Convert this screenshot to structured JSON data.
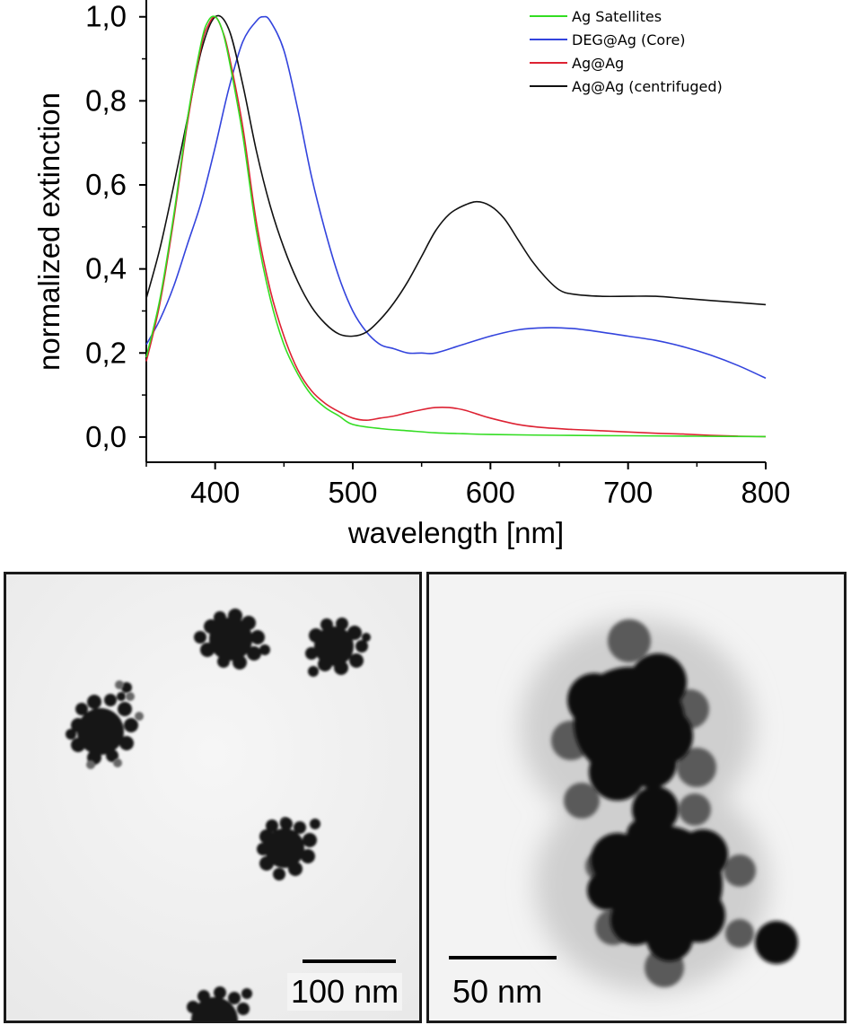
{
  "chart_data": {
    "type": "line",
    "xlabel": "wavelength [nm]",
    "ylabel": "normalized extinction",
    "xlim": [
      350,
      800
    ],
    "ylim": [
      -0.06,
      1.04
    ],
    "xticks": [
      "400",
      "500",
      "600",
      "700",
      "800"
    ],
    "xtick_values": [
      400,
      500,
      600,
      700,
      800
    ],
    "yticks": [
      "0,0",
      "0,2",
      "0,4",
      "0,6",
      "0,8",
      "1,0"
    ],
    "ytick_values": [
      0,
      0.2,
      0.4,
      0.6,
      0.8,
      1.0
    ],
    "legend_position": "top-right",
    "grid": false,
    "series": [
      {
        "name": "Ag Satellites",
        "color": "#33dd22",
        "x": [
          350,
          360,
          370,
          380,
          390,
          395,
          400,
          405,
          410,
          420,
          430,
          440,
          450,
          460,
          470,
          480,
          490,
          500,
          520,
          540,
          560,
          580,
          600,
          650,
          700,
          750,
          800
        ],
        "y": [
          0.19,
          0.33,
          0.53,
          0.76,
          0.94,
          0.99,
          1.0,
          0.97,
          0.9,
          0.72,
          0.49,
          0.33,
          0.22,
          0.15,
          0.1,
          0.07,
          0.05,
          0.03,
          0.02,
          0.015,
          0.01,
          0.008,
          0.006,
          0.004,
          0.003,
          0.002,
          0.001
        ]
      },
      {
        "name": "DEG@Ag (Core)",
        "color": "#3344dd",
        "x": [
          350,
          360,
          370,
          380,
          390,
          400,
          410,
          420,
          430,
          435,
          440,
          450,
          460,
          470,
          480,
          490,
          500,
          510,
          520,
          530,
          540,
          550,
          560,
          580,
          600,
          620,
          640,
          660,
          680,
          700,
          720,
          740,
          760,
          780,
          800
        ],
        "y": [
          0.22,
          0.28,
          0.36,
          0.46,
          0.56,
          0.69,
          0.83,
          0.94,
          0.99,
          1.0,
          0.99,
          0.92,
          0.78,
          0.62,
          0.49,
          0.38,
          0.3,
          0.25,
          0.22,
          0.21,
          0.2,
          0.2,
          0.2,
          0.22,
          0.24,
          0.255,
          0.26,
          0.258,
          0.25,
          0.24,
          0.23,
          0.215,
          0.195,
          0.17,
          0.14
        ]
      },
      {
        "name": "Ag@Ag",
        "color": "#dd2233",
        "x": [
          350,
          360,
          370,
          380,
          390,
          395,
          400,
          405,
          410,
          420,
          430,
          440,
          450,
          460,
          470,
          480,
          490,
          500,
          510,
          520,
          530,
          540,
          550,
          560,
          570,
          580,
          590,
          600,
          620,
          640,
          660,
          680,
          700,
          720,
          740,
          760,
          780,
          800
        ],
        "y": [
          0.18,
          0.32,
          0.52,
          0.75,
          0.93,
          0.98,
          1.0,
          0.97,
          0.91,
          0.74,
          0.51,
          0.35,
          0.24,
          0.16,
          0.11,
          0.08,
          0.06,
          0.045,
          0.04,
          0.045,
          0.05,
          0.058,
          0.065,
          0.07,
          0.07,
          0.065,
          0.055,
          0.045,
          0.03,
          0.022,
          0.018,
          0.015,
          0.012,
          0.009,
          0.007,
          0.004,
          0.002,
          0.001
        ]
      },
      {
        "name": "Ag@Ag (centrifuged)",
        "color": "#111111",
        "x": [
          350,
          360,
          370,
          380,
          390,
          400,
          410,
          420,
          430,
          440,
          450,
          460,
          470,
          480,
          490,
          500,
          510,
          520,
          530,
          540,
          550,
          560,
          570,
          580,
          590,
          600,
          610,
          620,
          630,
          640,
          650,
          660,
          680,
          700,
          720,
          740,
          760,
          780,
          800
        ],
        "y": [
          0.33,
          0.45,
          0.6,
          0.76,
          0.92,
          1.0,
          0.97,
          0.84,
          0.68,
          0.55,
          0.45,
          0.37,
          0.31,
          0.27,
          0.245,
          0.24,
          0.25,
          0.28,
          0.32,
          0.37,
          0.43,
          0.49,
          0.53,
          0.55,
          0.56,
          0.55,
          0.52,
          0.47,
          0.42,
          0.38,
          0.35,
          0.34,
          0.335,
          0.335,
          0.335,
          0.33,
          0.325,
          0.32,
          0.315
        ]
      }
    ]
  },
  "tem_left": {
    "scale_label": "100 nm"
  },
  "tem_right": {
    "scale_label": "50 nm"
  }
}
